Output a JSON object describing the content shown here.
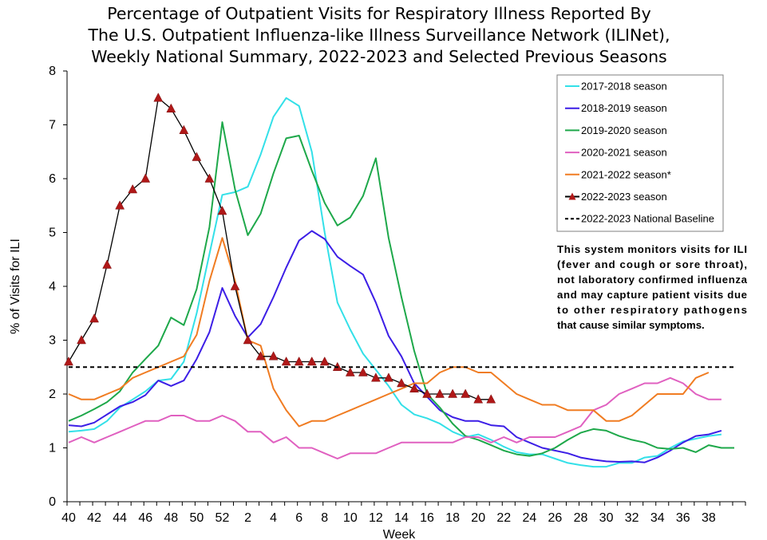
{
  "chart_data": {
    "type": "line",
    "title": [
      "Percentage of Outpatient Visits for Respiratory Illness Reported By",
      "The U.S. Outpatient Influenza-like Illness Surveillance Network (ILINet),",
      "Weekly National Summary, 2022-2023 and Selected Previous Seasons"
    ],
    "xlabel": "Week",
    "ylabel": "% of Visits for ILI",
    "ylim": [
      0,
      8
    ],
    "yticks": [
      "0",
      "1",
      "2",
      "3",
      "4",
      "5",
      "6",
      "7",
      "8"
    ],
    "xticks": [
      "40",
      "42",
      "44",
      "46",
      "48",
      "50",
      "52",
      "2",
      "4",
      "6",
      "8",
      "10",
      "12",
      "14",
      "16",
      "18",
      "20",
      "22",
      "24",
      "26",
      "28",
      "30",
      "32",
      "34",
      "36",
      "38"
    ],
    "grid": false,
    "legend_position": "top-right",
    "annotation": [
      "This system monitors visits for ILI",
      "(fever and cough or sore throat),",
      "not laboratory confirmed influenza",
      "and may capture patient visits due",
      "to other respiratory pathogens",
      "that cause similar symptoms."
    ],
    "series": [
      {
        "name": "2017-2018 season",
        "color": "#33e0e8",
        "values": [
          1.3,
          1.32,
          1.35,
          1.5,
          1.75,
          1.9,
          2.05,
          2.25,
          2.28,
          2.6,
          3.5,
          4.6,
          5.7,
          5.75,
          5.85,
          6.45,
          7.15,
          7.5,
          7.35,
          6.5,
          5.0,
          3.7,
          3.2,
          2.75,
          2.45,
          2.15,
          1.8,
          1.62,
          1.55,
          1.45,
          1.3,
          1.2,
          1.25,
          1.15,
          1.02,
          0.92,
          0.88,
          0.88,
          0.8,
          0.72,
          0.68,
          0.65,
          0.65,
          0.72,
          0.72,
          0.82,
          0.85,
          1.0,
          1.12,
          1.17,
          1.22,
          1.25
        ]
      },
      {
        "name": "2018-2019 season",
        "color": "#3c1ee6",
        "values": [
          1.42,
          1.4,
          1.47,
          1.62,
          1.77,
          1.85,
          1.98,
          2.25,
          2.15,
          2.25,
          2.65,
          3.15,
          3.97,
          3.45,
          3.05,
          3.3,
          3.8,
          4.35,
          4.85,
          5.03,
          4.88,
          4.55,
          4.38,
          4.22,
          3.7,
          3.08,
          2.7,
          2.2,
          1.95,
          1.7,
          1.57,
          1.5,
          1.5,
          1.42,
          1.4,
          1.2,
          1.1,
          1.0,
          0.95,
          0.9,
          0.82,
          0.78,
          0.75,
          0.74,
          0.75,
          0.73,
          0.82,
          0.95,
          1.1,
          1.22,
          1.25,
          1.32
        ]
      },
      {
        "name": "2019-2020 season",
        "color": "#1ea84a",
        "values": [
          1.5,
          1.6,
          1.72,
          1.85,
          2.05,
          2.4,
          2.65,
          2.9,
          3.42,
          3.28,
          3.95,
          5.1,
          7.05,
          5.8,
          4.95,
          5.35,
          6.1,
          6.75,
          6.8,
          6.15,
          5.55,
          5.13,
          5.28,
          5.68,
          6.38,
          4.9,
          3.8,
          2.8,
          2.0,
          1.75,
          1.45,
          1.22,
          1.15,
          1.05,
          0.95,
          0.88,
          0.85,
          0.9,
          1.0,
          1.15,
          1.28,
          1.35,
          1.32,
          1.22,
          1.15,
          1.1,
          1.0,
          0.98,
          1.0,
          0.92,
          1.05,
          1.0,
          1.0
        ]
      },
      {
        "name": "2020-2021 season",
        "color": "#e060c0",
        "values": [
          1.1,
          1.2,
          1.1,
          1.2,
          1.3,
          1.4,
          1.5,
          1.5,
          1.6,
          1.6,
          1.5,
          1.5,
          1.6,
          1.5,
          1.3,
          1.3,
          1.1,
          1.2,
          1.0,
          1.0,
          0.9,
          0.8,
          0.9,
          0.9,
          0.9,
          1.0,
          1.1,
          1.1,
          1.1,
          1.1,
          1.1,
          1.2,
          1.2,
          1.1,
          1.2,
          1.1,
          1.2,
          1.2,
          1.2,
          1.3,
          1.4,
          1.7,
          1.8,
          2.0,
          2.1,
          2.2,
          2.2,
          2.3,
          2.2,
          2.0,
          1.9,
          1.9
        ]
      },
      {
        "name": "2021-2022 season*",
        "color": "#f07c22",
        "values": [
          2.0,
          1.9,
          1.9,
          2.0,
          2.1,
          2.3,
          2.4,
          2.5,
          2.6,
          2.7,
          3.1,
          4.1,
          4.9,
          4.1,
          3.0,
          2.9,
          2.1,
          1.7,
          1.4,
          1.5,
          1.5,
          1.6,
          1.7,
          1.8,
          1.9,
          2.0,
          2.1,
          2.2,
          2.2,
          2.4,
          2.5,
          2.5,
          2.4,
          2.4,
          2.2,
          2.0,
          1.9,
          1.8,
          1.8,
          1.7,
          1.7,
          1.7,
          1.5,
          1.5,
          1.6,
          1.8,
          2.0,
          2.0,
          2.0,
          2.3,
          2.4
        ]
      },
      {
        "name": "2022-2023 season",
        "color": "#000000",
        "marker_color": "#b01818",
        "values": [
          2.6,
          3.0,
          3.4,
          4.4,
          5.5,
          5.8,
          6.0,
          7.5,
          7.3,
          6.9,
          6.4,
          6.0,
          5.4,
          4.0,
          3.0,
          2.7,
          2.7,
          2.6,
          2.6,
          2.6,
          2.6,
          2.5,
          2.4,
          2.4,
          2.3,
          2.3,
          2.2,
          2.1,
          2.0,
          2.0,
          2.0,
          2.0,
          1.9,
          1.9
        ]
      },
      {
        "name": "2022-2023 National Baseline",
        "color": "#000000",
        "dashed": true,
        "values": [
          2.5
        ]
      }
    ]
  }
}
